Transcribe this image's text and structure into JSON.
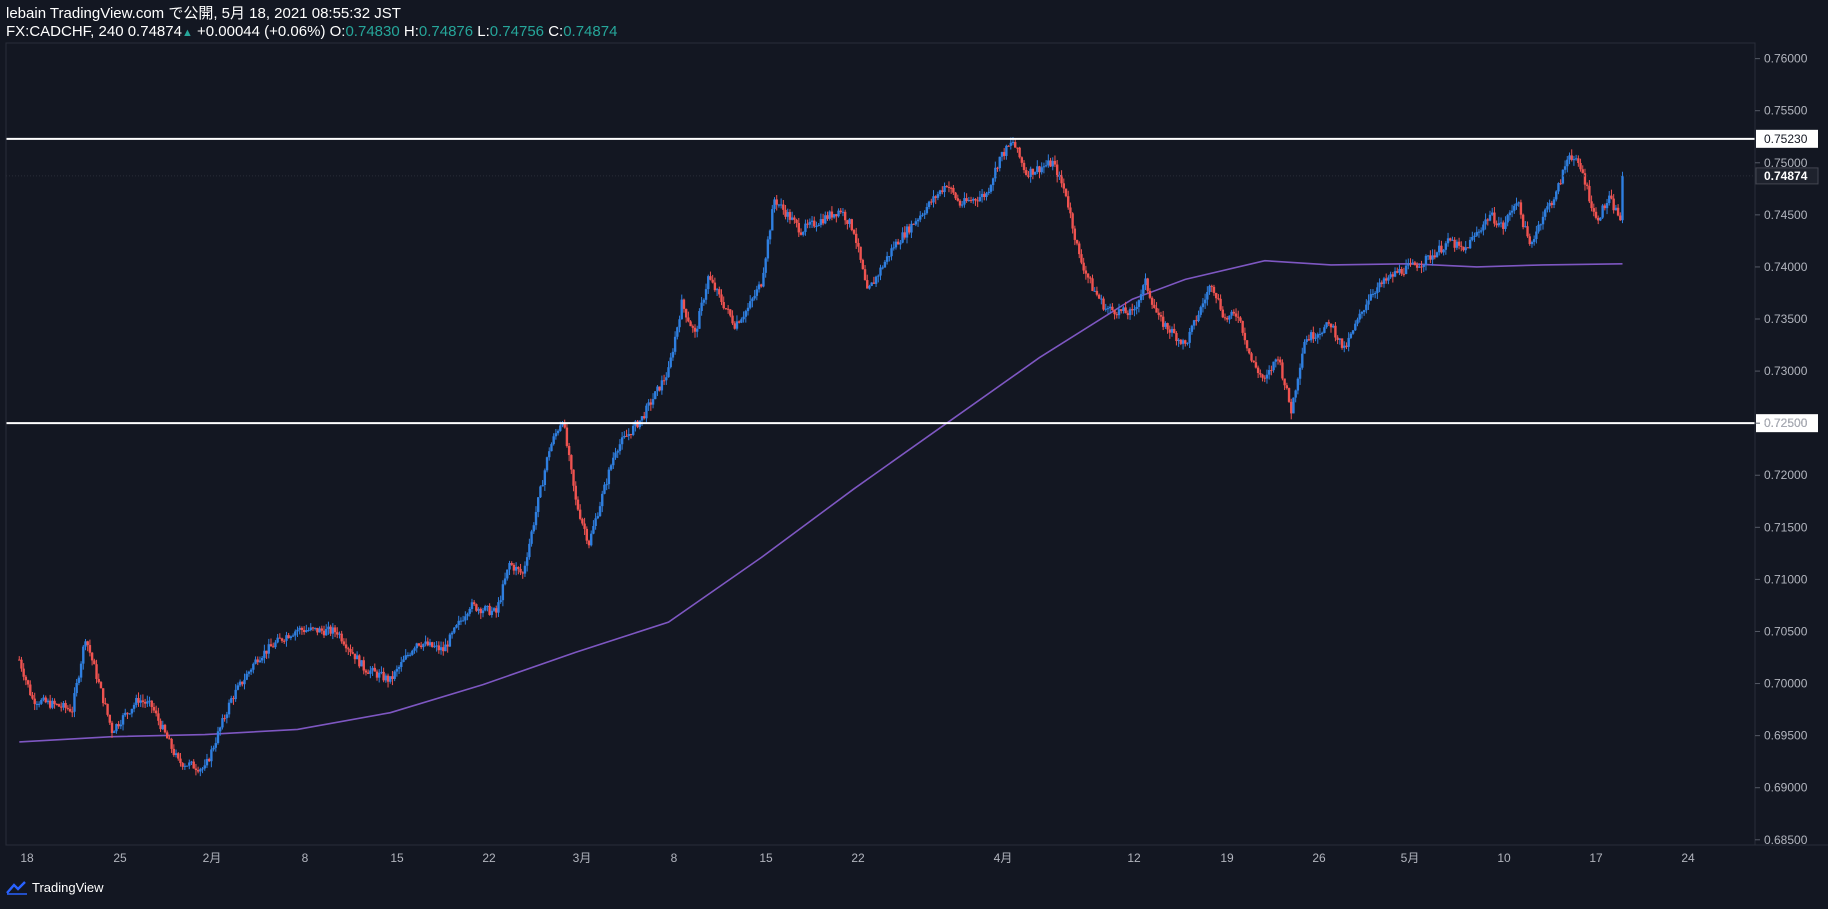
{
  "header": {
    "line1": "lebain TradingView.com で公開, 5月 18, 2021 08:55:32 JST",
    "symbol": "FX:CADCHF, 240",
    "last": "0.74874",
    "change": "+0.00044 (+0.06%)",
    "o_label": "O:",
    "o_value": "0.74830",
    "h_label": "H:",
    "h_value": "0.74876",
    "l_label": "L:",
    "l_value": "0.74756",
    "c_label": "C:",
    "c_value": "0.74874"
  },
  "footer": {
    "brand": "TradingView"
  },
  "colors": {
    "background": "#131722",
    "up": "#2f7fe0",
    "down": "#ef5350",
    "ma": "#7e57c2",
    "level": "#ffffff",
    "ohlc_value": "#26a69a"
  },
  "chart_data": {
    "type": "candlestick",
    "symbol": "FX:CADCHF",
    "timeframe": "240",
    "ylim": [
      0.685,
      0.761
    ],
    "y_ticks": [
      "0.76000",
      "0.75500",
      "0.75000",
      "0.74500",
      "0.74000",
      "0.73500",
      "0.73000",
      "0.72500",
      "0.72000",
      "0.71500",
      "0.71000",
      "0.70500",
      "0.70000",
      "0.69500",
      "0.69000",
      "0.68500"
    ],
    "x_ticks": [
      "18",
      "25",
      "2月",
      "8",
      "15",
      "22",
      "3月",
      "8",
      "15",
      "22",
      "4月",
      "12",
      "19",
      "26",
      "5月",
      "10",
      "17",
      "24"
    ],
    "horizontal_levels": [
      {
        "value": 0.7523,
        "label": "0.75230"
      },
      {
        "value": 0.725,
        "label": "0.72500"
      }
    ],
    "last_price": {
      "value": 0.74874,
      "label": "0.74874"
    },
    "price_path": [
      {
        "date": "2021-01-17",
        "price": 0.7023
      },
      {
        "date": "2021-01-18",
        "price": 0.6985
      },
      {
        "date": "2021-01-21",
        "price": 0.6975
      },
      {
        "date": "2021-01-22",
        "price": 0.7045
      },
      {
        "date": "2021-01-24",
        "price": 0.6955
      },
      {
        "date": "2021-01-26",
        "price": 0.6985
      },
      {
        "date": "2021-01-27",
        "price": 0.6978
      },
      {
        "date": "2021-01-29",
        "price": 0.6925
      },
      {
        "date": "2021-01-31",
        "price": 0.6918
      },
      {
        "date": "2021-02-02",
        "price": 0.6985
      },
      {
        "date": "2021-02-04",
        "price": 0.7025
      },
      {
        "date": "2021-02-06",
        "price": 0.7045
      },
      {
        "date": "2021-02-07",
        "price": 0.7052
      },
      {
        "date": "2021-02-10",
        "price": 0.705
      },
      {
        "date": "2021-02-12",
        "price": 0.7015
      },
      {
        "date": "2021-02-14",
        "price": 0.7003
      },
      {
        "date": "2021-02-16",
        "price": 0.704
      },
      {
        "date": "2021-02-18",
        "price": 0.7032
      },
      {
        "date": "2021-02-20",
        "price": 0.7075
      },
      {
        "date": "2021-02-22",
        "price": 0.7068
      },
      {
        "date": "2021-02-23",
        "price": 0.7115
      },
      {
        "date": "2021-02-24",
        "price": 0.7105
      },
      {
        "date": "2021-02-26",
        "price": 0.7225
      },
      {
        "date": "2021-02-27",
        "price": 0.7255
      },
      {
        "date": "2021-02-28",
        "price": 0.7175
      },
      {
        "date": "2021-03-01",
        "price": 0.7135
      },
      {
        "date": "2021-03-03",
        "price": 0.7225
      },
      {
        "date": "2021-03-05",
        "price": 0.7255
      },
      {
        "date": "2021-03-07",
        "price": 0.73
      },
      {
        "date": "2021-03-08",
        "price": 0.7365
      },
      {
        "date": "2021-03-09",
        "price": 0.7335
      },
      {
        "date": "2021-03-10",
        "price": 0.739
      },
      {
        "date": "2021-03-12",
        "price": 0.7345
      },
      {
        "date": "2021-03-13",
        "price": 0.736
      },
      {
        "date": "2021-03-14",
        "price": 0.7385
      },
      {
        "date": "2021-03-15",
        "price": 0.7465
      },
      {
        "date": "2021-03-17",
        "price": 0.7435
      },
      {
        "date": "2021-03-20",
        "price": 0.7455
      },
      {
        "date": "2021-03-21",
        "price": 0.7435
      },
      {
        "date": "2021-03-22",
        "price": 0.7375
      },
      {
        "date": "2021-03-24",
        "price": 0.742
      },
      {
        "date": "2021-03-26",
        "price": 0.745
      },
      {
        "date": "2021-03-28",
        "price": 0.748
      },
      {
        "date": "2021-03-29",
        "price": 0.746
      },
      {
        "date": "2021-03-31",
        "price": 0.747
      },
      {
        "date": "2021-04-01",
        "price": 0.7505
      },
      {
        "date": "2021-04-02",
        "price": 0.752
      },
      {
        "date": "2021-04-03",
        "price": 0.749
      },
      {
        "date": "2021-04-05",
        "price": 0.75
      },
      {
        "date": "2021-04-06",
        "price": 0.747
      },
      {
        "date": "2021-04-07",
        "price": 0.741
      },
      {
        "date": "2021-04-08",
        "price": 0.738
      },
      {
        "date": "2021-04-09",
        "price": 0.736
      },
      {
        "date": "2021-04-11",
        "price": 0.7355
      },
      {
        "date": "2021-04-12",
        "price": 0.7385
      },
      {
        "date": "2021-04-13",
        "price": 0.735
      },
      {
        "date": "2021-04-15",
        "price": 0.7325
      },
      {
        "date": "2021-04-17",
        "price": 0.7385
      },
      {
        "date": "2021-04-18",
        "price": 0.735
      },
      {
        "date": "2021-04-19",
        "price": 0.7355
      },
      {
        "date": "2021-04-20",
        "price": 0.731
      },
      {
        "date": "2021-04-21",
        "price": 0.729
      },
      {
        "date": "2021-04-22",
        "price": 0.7315
      },
      {
        "date": "2021-04-23",
        "price": 0.7262
      },
      {
        "date": "2021-04-24",
        "price": 0.733
      },
      {
        "date": "2021-04-26",
        "price": 0.7345
      },
      {
        "date": "2021-04-27",
        "price": 0.732
      },
      {
        "date": "2021-04-29",
        "price": 0.7375
      },
      {
        "date": "2021-05-01",
        "price": 0.7395
      },
      {
        "date": "2021-05-03",
        "price": 0.7405
      },
      {
        "date": "2021-05-05",
        "price": 0.7425
      },
      {
        "date": "2021-05-06",
        "price": 0.7415
      },
      {
        "date": "2021-05-08",
        "price": 0.745
      },
      {
        "date": "2021-05-09",
        "price": 0.7438
      },
      {
        "date": "2021-05-10",
        "price": 0.7465
      },
      {
        "date": "2021-05-11",
        "price": 0.742
      },
      {
        "date": "2021-05-12",
        "price": 0.745
      },
      {
        "date": "2021-05-13",
        "price": 0.747
      },
      {
        "date": "2021-05-14",
        "price": 0.751
      },
      {
        "date": "2021-05-15",
        "price": 0.749
      },
      {
        "date": "2021-05-16",
        "price": 0.7445
      },
      {
        "date": "2021-05-17",
        "price": 0.7465
      },
      {
        "date": "2021-05-18",
        "price": 0.7443
      },
      {
        "date": "2021-05-18",
        "price": 0.74874
      }
    ],
    "moving_average": [
      {
        "date": "2021-01-17",
        "value": 0.6944
      },
      {
        "date": "2021-01-24",
        "value": 0.6949
      },
      {
        "date": "2021-01-31",
        "value": 0.6951
      },
      {
        "date": "2021-02-07",
        "value": 0.6956
      },
      {
        "date": "2021-02-14",
        "value": 0.6972
      },
      {
        "date": "2021-02-21",
        "value": 0.6999
      },
      {
        "date": "2021-02-28",
        "value": 0.703
      },
      {
        "date": "2021-03-07",
        "value": 0.7059
      },
      {
        "date": "2021-03-14",
        "value": 0.7121
      },
      {
        "date": "2021-03-21",
        "value": 0.7187
      },
      {
        "date": "2021-03-28",
        "value": 0.725
      },
      {
        "date": "2021-04-04",
        "value": 0.7313
      },
      {
        "date": "2021-04-11",
        "value": 0.7369
      },
      {
        "date": "2021-04-15",
        "value": 0.7388
      },
      {
        "date": "2021-04-21",
        "value": 0.7406
      },
      {
        "date": "2021-04-26",
        "value": 0.7402
      },
      {
        "date": "2021-05-02",
        "value": 0.7403
      },
      {
        "date": "2021-05-07",
        "value": 0.74
      },
      {
        "date": "2021-05-12",
        "value": 0.7402
      },
      {
        "date": "2021-05-18",
        "value": 0.7403
      }
    ]
  }
}
